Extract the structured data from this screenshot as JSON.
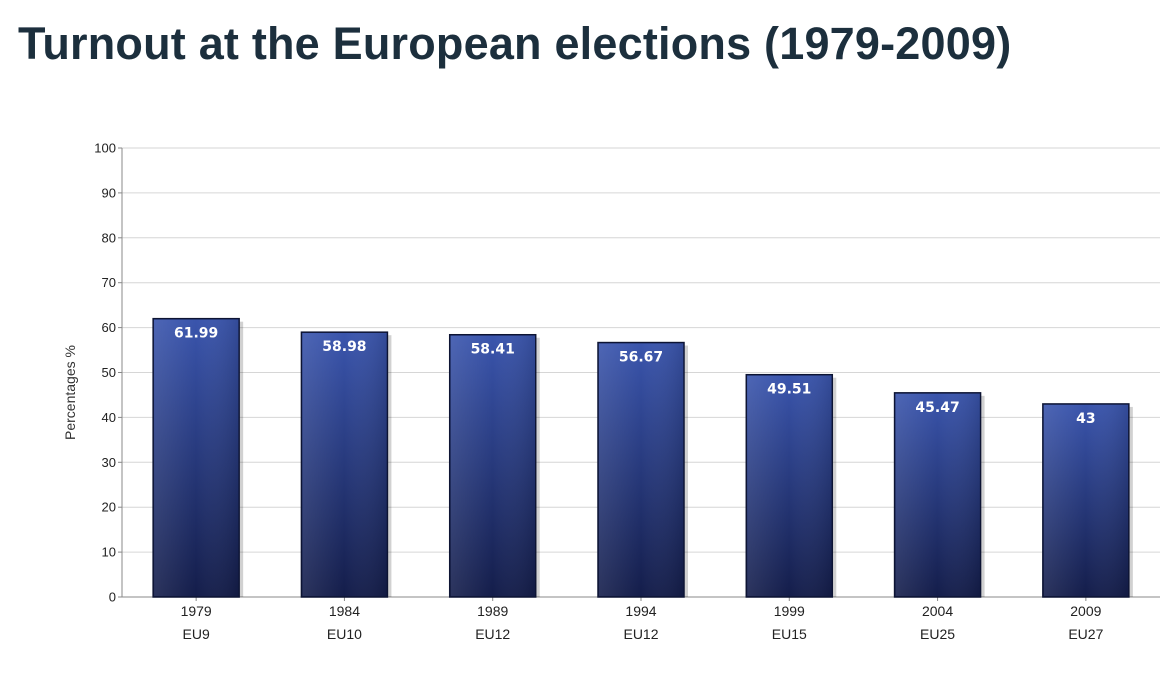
{
  "chart_data": {
    "type": "bar",
    "title": "Turnout at the European elections (1979-2009)",
    "xlabel": "",
    "ylabel": "Percentages %",
    "ylim": [
      0,
      100
    ],
    "yticks": [
      0,
      10,
      20,
      30,
      40,
      50,
      60,
      70,
      80,
      90,
      100
    ],
    "grid": true,
    "categories": [
      {
        "year": "1979",
        "group": "EU9"
      },
      {
        "year": "1984",
        "group": "EU10"
      },
      {
        "year": "1989",
        "group": "EU12"
      },
      {
        "year": "1994",
        "group": "EU12"
      },
      {
        "year": "1999",
        "group": "EU15"
      },
      {
        "year": "2004",
        "group": "EU25"
      },
      {
        "year": "2009",
        "group": "EU27"
      }
    ],
    "values": [
      61.99,
      58.98,
      58.41,
      56.67,
      49.51,
      45.47,
      43
    ],
    "value_labels": [
      "61.99",
      "58.98",
      "58.41",
      "56.67",
      "49.51",
      "45.47",
      "43"
    ],
    "colors": {
      "bar_top": "#3a55ad",
      "bar_bottom": "#141d4a",
      "bar_outline": "#0d1433",
      "grid": "#d6d6d6",
      "axis": "#888888",
      "title": "#1c2f3d"
    }
  }
}
